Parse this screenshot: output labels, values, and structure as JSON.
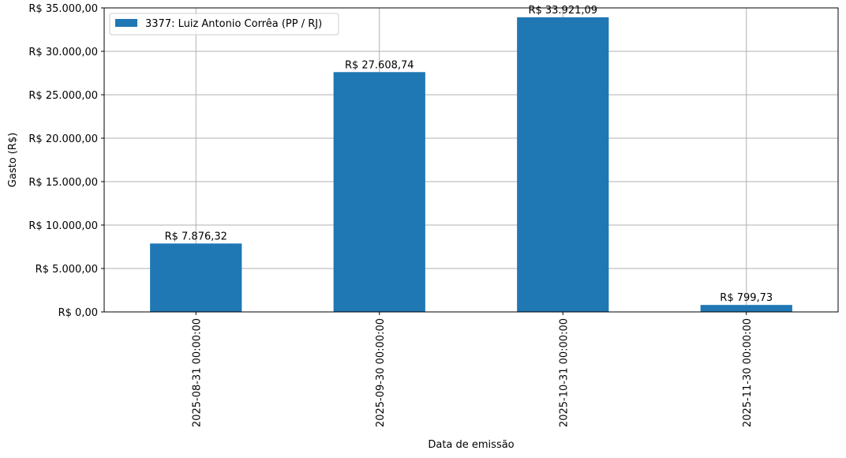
{
  "chart_data": {
    "type": "bar",
    "categories": [
      "2025-08-31 00:00:00",
      "2025-09-30 00:00:00",
      "2025-10-31 00:00:00",
      "2025-11-30 00:00:00"
    ],
    "series": [
      {
        "name": "3377: Luiz Antonio Corrêa (PP / RJ)",
        "values": [
          7876.32,
          27608.74,
          33921.09,
          799.73
        ],
        "color": "#1f77b4"
      }
    ],
    "data_labels": [
      "R$ 7.876,32",
      "R$ 27.608,74",
      "R$ 33.921,09",
      "R$ 799,73"
    ],
    "xlabel": "Data de emissão",
    "ylabel": "Gasto (R$)",
    "ylim": [
      0,
      35000
    ],
    "yticks": [
      0,
      5000,
      10000,
      15000,
      20000,
      25000,
      30000,
      35000
    ],
    "ytick_labels": [
      "R$ 0,00",
      "R$ 5.000,00",
      "R$ 10.000,00",
      "R$ 15.000,00",
      "R$ 20.000,00",
      "R$ 25.000,00",
      "R$ 30.000,00",
      "R$ 35.000,00"
    ],
    "grid": true,
    "legend_position": "top-left",
    "x_tick_rotation": "vertical"
  }
}
